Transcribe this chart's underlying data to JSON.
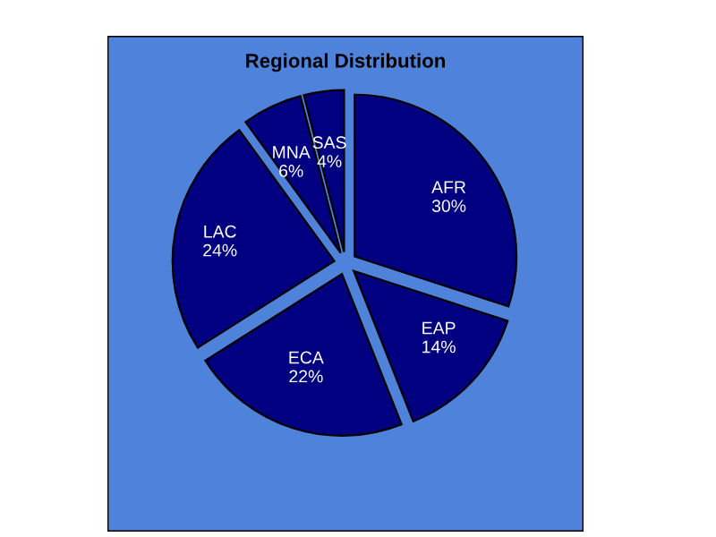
{
  "chart_data": {
    "type": "pie",
    "title": "Regional Distribution",
    "categories": [
      "AFR",
      "EAP",
      "ECA",
      "LAC",
      "MNA",
      "SAS"
    ],
    "values": [
      30,
      14,
      22,
      24,
      6,
      4
    ],
    "colors": [
      "#000080",
      "#000080",
      "#000080",
      "#000080",
      "#000080",
      "#000080"
    ],
    "value_labels": [
      "30%",
      "14%",
      "22%",
      "24%",
      "6%",
      "4%"
    ],
    "legend": false
  }
}
